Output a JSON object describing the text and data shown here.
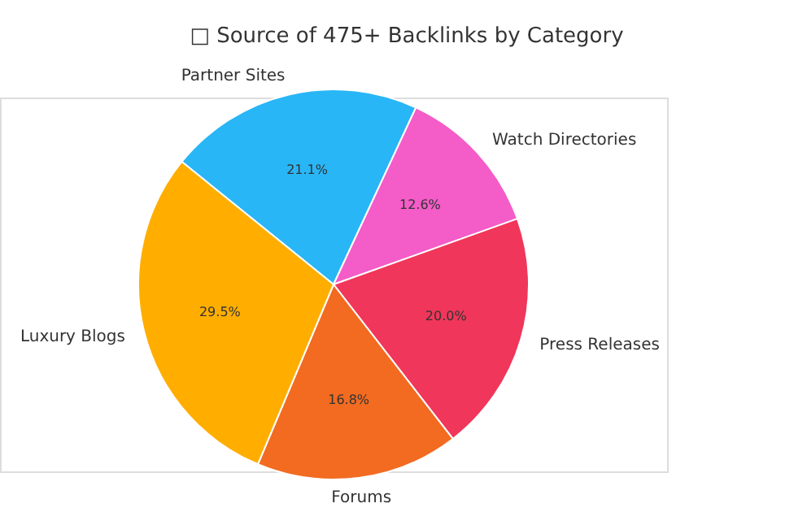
{
  "chart_data": {
    "type": "pie",
    "title": "□ Source of 475+ Backlinks by Category",
    "categories": [
      "Partner Sites",
      "Watch Directories",
      "Press Releases",
      "Forums",
      "Luxury Blogs"
    ],
    "values": [
      21.1,
      12.6,
      20.0,
      16.8,
      29.5
    ],
    "colors": [
      "#29b6f6",
      "#f45cc8",
      "#f0365a",
      "#f26b21",
      "#ffae00"
    ],
    "value_labels": [
      "21.1%",
      "12.6%",
      "20.0%",
      "16.8%",
      "29.5%"
    ],
    "legend": false
  }
}
